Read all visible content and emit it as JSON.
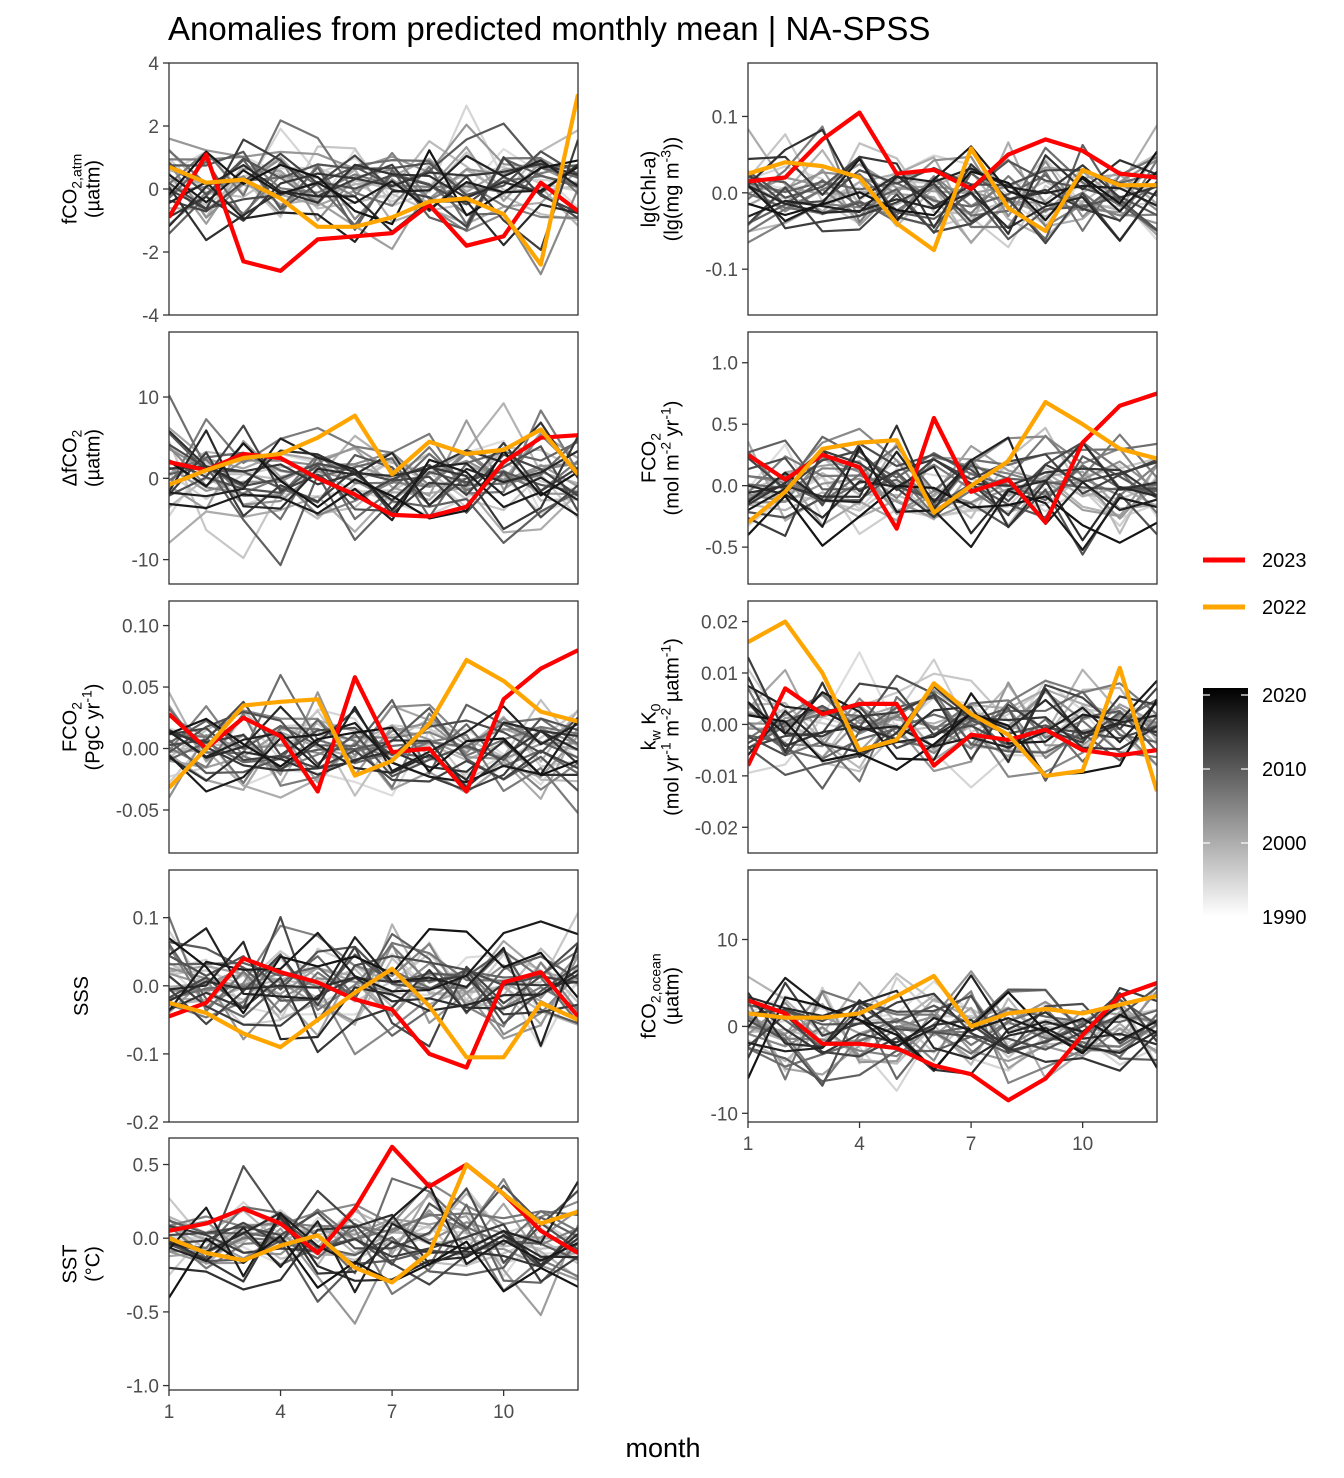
{
  "title": "Anomalies from predicted monthly mean | NA-SPSS",
  "x_axis_label": "month",
  "legend": {
    "series": [
      {
        "label": "2023",
        "color": "#ff0000"
      },
      {
        "label": "2022",
        "color": "#ffa500"
      }
    ],
    "gradient": {
      "labels": [
        "2020",
        "2010",
        "2000",
        "1990"
      ],
      "colors": [
        "#000000",
        "#ffffff"
      ]
    }
  },
  "chart_data": [
    {
      "type": "line",
      "name": "fco2atm",
      "ylabel_lines": [
        [
          {
            "t": "fCO"
          },
          {
            "t": "2,atm",
            "s": "sub"
          }
        ],
        [
          {
            "t": "(µatm)"
          }
        ]
      ],
      "x": [
        1,
        2,
        3,
        4,
        5,
        6,
        7,
        8,
        9,
        10,
        11,
        12
      ],
      "xticks": [
        1,
        4,
        7,
        10
      ],
      "xlim": [
        1,
        12
      ],
      "yticks": [
        4,
        2,
        0,
        -2,
        -4
      ],
      "ylim": [
        -4,
        4
      ],
      "series": [
        {
          "name": "2023",
          "values": [
            -0.9,
            1.1,
            -2.3,
            -2.6,
            -1.6,
            -1.5,
            -1.4,
            -0.5,
            -1.8,
            -1.5,
            0.2,
            -0.7
          ]
        },
        {
          "name": "2022",
          "values": [
            0.7,
            0.2,
            0.3,
            -0.3,
            -1.2,
            -1.2,
            -0.9,
            -0.4,
            -0.3,
            -0.8,
            -2.4,
            3.0
          ]
        }
      ]
    },
    {
      "type": "line",
      "name": "chla",
      "ylabel_lines": [
        [
          {
            "t": "lg(Chl-a)"
          }
        ],
        [
          {
            "t": "(lg(mg m"
          },
          {
            "t": "-3",
            "s": "sup"
          },
          {
            "t": "))"
          }
        ]
      ],
      "x": [
        1,
        2,
        3,
        4,
        5,
        6,
        7,
        8,
        9,
        10,
        11,
        12
      ],
      "xticks": [
        1,
        4,
        7,
        10
      ],
      "xlim": [
        1,
        12
      ],
      "yticks": [
        0.1,
        0.0,
        -0.1
      ],
      "ytick_labels": [
        "0.1",
        "0.0",
        "-0.1"
      ],
      "ylim": [
        -0.16,
        0.17
      ],
      "series": [
        {
          "name": "2023",
          "values": [
            0.015,
            0.02,
            0.07,
            0.105,
            0.025,
            0.03,
            0.005,
            0.05,
            0.07,
            0.055,
            0.025,
            0.02
          ]
        },
        {
          "name": "2022",
          "values": [
            0.025,
            0.04,
            0.035,
            0.02,
            -0.04,
            -0.075,
            0.058,
            -0.02,
            -0.05,
            0.03,
            0.01,
            0.01
          ]
        }
      ]
    },
    {
      "type": "line",
      "name": "dfco2",
      "ylabel_lines": [
        [
          {
            "t": "ΔfCO"
          },
          {
            "t": "2",
            "s": "sub"
          }
        ],
        [
          {
            "t": "(µatm)"
          }
        ]
      ],
      "x": [
        1,
        2,
        3,
        4,
        5,
        6,
        7,
        8,
        9,
        10,
        11,
        12
      ],
      "xticks": [
        1,
        4,
        7,
        10
      ],
      "xlim": [
        1,
        12
      ],
      "yticks": [
        10,
        0,
        -10
      ],
      "ylim": [
        -13,
        18
      ],
      "series": [
        {
          "name": "2023",
          "values": [
            2.0,
            1.0,
            3.0,
            2.5,
            0.0,
            -2.0,
            -4.5,
            -4.7,
            -3.5,
            2.0,
            5.0,
            5.3
          ]
        },
        {
          "name": "2022",
          "values": [
            -0.8,
            1.0,
            2.5,
            3.0,
            5.0,
            7.7,
            0.5,
            4.5,
            3.0,
            3.5,
            6.0,
            0.5
          ]
        }
      ]
    },
    {
      "type": "line",
      "name": "fco2_mol",
      "ylabel_lines": [
        [
          {
            "t": "FCO"
          },
          {
            "t": "2",
            "s": "sub"
          }
        ],
        [
          {
            "t": "(mol m"
          },
          {
            "t": "-2",
            "s": "sup"
          },
          {
            "t": " yr"
          },
          {
            "t": "-1",
            "s": "sup"
          },
          {
            "t": ")"
          }
        ]
      ],
      "x": [
        1,
        2,
        3,
        4,
        5,
        6,
        7,
        8,
        9,
        10,
        11,
        12
      ],
      "xticks": [
        1,
        4,
        7,
        10
      ],
      "xlim": [
        1,
        12
      ],
      "yticks": [
        1.0,
        0.5,
        0.0,
        -0.5
      ],
      "ytick_labels": [
        "1.0",
        "0.5",
        "0.0",
        "-0.5"
      ],
      "ylim": [
        -0.8,
        1.25
      ],
      "series": [
        {
          "name": "2023",
          "values": [
            0.25,
            0.05,
            0.25,
            0.15,
            -0.35,
            0.55,
            -0.05,
            0.05,
            -0.3,
            0.35,
            0.65,
            0.75
          ]
        },
        {
          "name": "2022",
          "values": [
            -0.3,
            -0.05,
            0.3,
            0.35,
            0.37,
            -0.22,
            0.0,
            0.2,
            0.68,
            0.5,
            0.3,
            0.22
          ]
        }
      ]
    },
    {
      "type": "line",
      "name": "fco2_pgc",
      "ylabel_lines": [
        [
          {
            "t": "FCO"
          },
          {
            "t": "2",
            "s": "sub"
          }
        ],
        [
          {
            "t": "(PgC yr"
          },
          {
            "t": "-1",
            "s": "sup"
          },
          {
            "t": ")"
          }
        ]
      ],
      "x": [
        1,
        2,
        3,
        4,
        5,
        6,
        7,
        8,
        9,
        10,
        11,
        12
      ],
      "xticks": [
        1,
        4,
        7,
        10
      ],
      "xlim": [
        1,
        12
      ],
      "yticks": [
        0.1,
        0.05,
        0.0,
        -0.05
      ],
      "ytick_labels": [
        "0.10",
        "0.05",
        "0.00",
        "-0.05"
      ],
      "ylim": [
        -0.085,
        0.12
      ],
      "series": [
        {
          "name": "2023",
          "values": [
            0.028,
            0.0,
            0.025,
            0.01,
            -0.035,
            0.058,
            -0.003,
            0.0,
            -0.035,
            0.04,
            0.065,
            0.08
          ]
        },
        {
          "name": "2022",
          "values": [
            -0.032,
            0.0,
            0.035,
            0.038,
            0.04,
            -0.022,
            -0.01,
            0.02,
            0.072,
            0.055,
            0.03,
            0.022
          ]
        }
      ]
    },
    {
      "type": "line",
      "name": "kwk0",
      "ylabel_lines": [
        [
          {
            "t": "k"
          },
          {
            "t": "w",
            "s": "sub"
          },
          {
            "t": " K"
          },
          {
            "t": "0",
            "s": "sub"
          }
        ],
        [
          {
            "t": "(mol yr"
          },
          {
            "t": "-1",
            "s": "sup"
          },
          {
            "t": " m"
          },
          {
            "t": "-2",
            "s": "sup"
          },
          {
            "t": " µatm"
          },
          {
            "t": "-1",
            "s": "sup"
          },
          {
            "t": ")"
          }
        ]
      ],
      "x": [
        1,
        2,
        3,
        4,
        5,
        6,
        7,
        8,
        9,
        10,
        11,
        12
      ],
      "xticks": [
        1,
        4,
        7,
        10
      ],
      "xlim": [
        1,
        12
      ],
      "yticks": [
        0.02,
        0.01,
        0.0,
        -0.01,
        -0.02
      ],
      "ytick_labels": [
        "0.02",
        "0.01",
        "0.00",
        "-0.01",
        "-0.02"
      ],
      "ylim": [
        -0.025,
        0.024
      ],
      "series": [
        {
          "name": "2023",
          "values": [
            -0.008,
            0.007,
            0.002,
            0.004,
            0.004,
            -0.008,
            -0.002,
            -0.003,
            -0.001,
            -0.005,
            -0.006,
            -0.005
          ]
        },
        {
          "name": "2022",
          "values": [
            0.016,
            0.02,
            0.01,
            -0.005,
            -0.003,
            0.008,
            0.002,
            -0.002,
            -0.01,
            -0.009,
            0.011,
            -0.013
          ]
        }
      ]
    },
    {
      "type": "line",
      "name": "sss",
      "ylabel_lines": [
        [
          {
            "t": "SSS"
          }
        ]
      ],
      "x": [
        1,
        2,
        3,
        4,
        5,
        6,
        7,
        8,
        9,
        10,
        11,
        12
      ],
      "xticks": [
        1,
        4,
        7,
        10
      ],
      "xlim": [
        1,
        12
      ],
      "yticks": [
        0.1,
        0.0,
        -0.1,
        -0.2
      ],
      "ytick_labels": [
        "0.1",
        "0.0",
        "-0.1",
        "-0.2"
      ],
      "ylim": [
        -0.2,
        0.17
      ],
      "series": [
        {
          "name": "2023",
          "values": [
            -0.045,
            -0.025,
            0.04,
            0.02,
            0.005,
            -0.02,
            -0.035,
            -0.1,
            -0.12,
            0.005,
            0.02,
            -0.045
          ]
        },
        {
          "name": "2022",
          "values": [
            -0.025,
            -0.04,
            -0.07,
            -0.09,
            -0.05,
            -0.01,
            0.025,
            -0.03,
            -0.105,
            -0.105,
            -0.025,
            -0.05
          ]
        }
      ]
    },
    {
      "type": "line",
      "name": "fco2ocean",
      "ylabel_lines": [
        [
          {
            "t": "fCO"
          },
          {
            "t": "2,ocean",
            "s": "sub"
          }
        ],
        [
          {
            "t": "(µatm)"
          }
        ]
      ],
      "x": [
        1,
        2,
        3,
        4,
        5,
        6,
        7,
        8,
        9,
        10,
        11,
        12
      ],
      "xticks": [
        1,
        4,
        7,
        10
      ],
      "xlim": [
        1,
        12
      ],
      "yticks": [
        10,
        0,
        -10
      ],
      "ylim": [
        -11,
        18
      ],
      "series": [
        {
          "name": "2023",
          "values": [
            3.0,
            1.5,
            -2.0,
            -2.0,
            -2.5,
            -4.5,
            -5.5,
            -8.5,
            -6.0,
            -1.0,
            3.5,
            5.0
          ]
        },
        {
          "name": "2022",
          "values": [
            1.5,
            1.0,
            1.0,
            1.5,
            3.5,
            5.8,
            0.0,
            1.5,
            2.0,
            1.5,
            2.5,
            3.5
          ]
        }
      ]
    },
    {
      "type": "line",
      "name": "sst",
      "ylabel_lines": [
        [
          {
            "t": "SST"
          }
        ],
        [
          {
            "t": "(°C)"
          }
        ]
      ],
      "x": [
        1,
        2,
        3,
        4,
        5,
        6,
        7,
        8,
        9,
        10,
        11,
        12
      ],
      "xticks": [
        1,
        4,
        7,
        10
      ],
      "xlim": [
        1,
        12
      ],
      "yticks": [
        0.5,
        0.0,
        -0.5,
        -1.0
      ],
      "ytick_labels": [
        "0.5",
        "0.0",
        "-0.5",
        "-1.0"
      ],
      "ylim": [
        -1.03,
        0.68
      ],
      "series": [
        {
          "name": "2023",
          "values": [
            0.05,
            0.1,
            0.2,
            0.1,
            -0.1,
            0.2,
            0.62,
            0.35,
            0.5,
            0.3,
            0.05,
            -0.1
          ]
        },
        {
          "name": "2022",
          "values": [
            0.0,
            -0.1,
            -0.15,
            -0.05,
            0.02,
            -0.2,
            -0.3,
            -0.1,
            0.5,
            0.3,
            0.1,
            0.18
          ]
        }
      ]
    }
  ]
}
